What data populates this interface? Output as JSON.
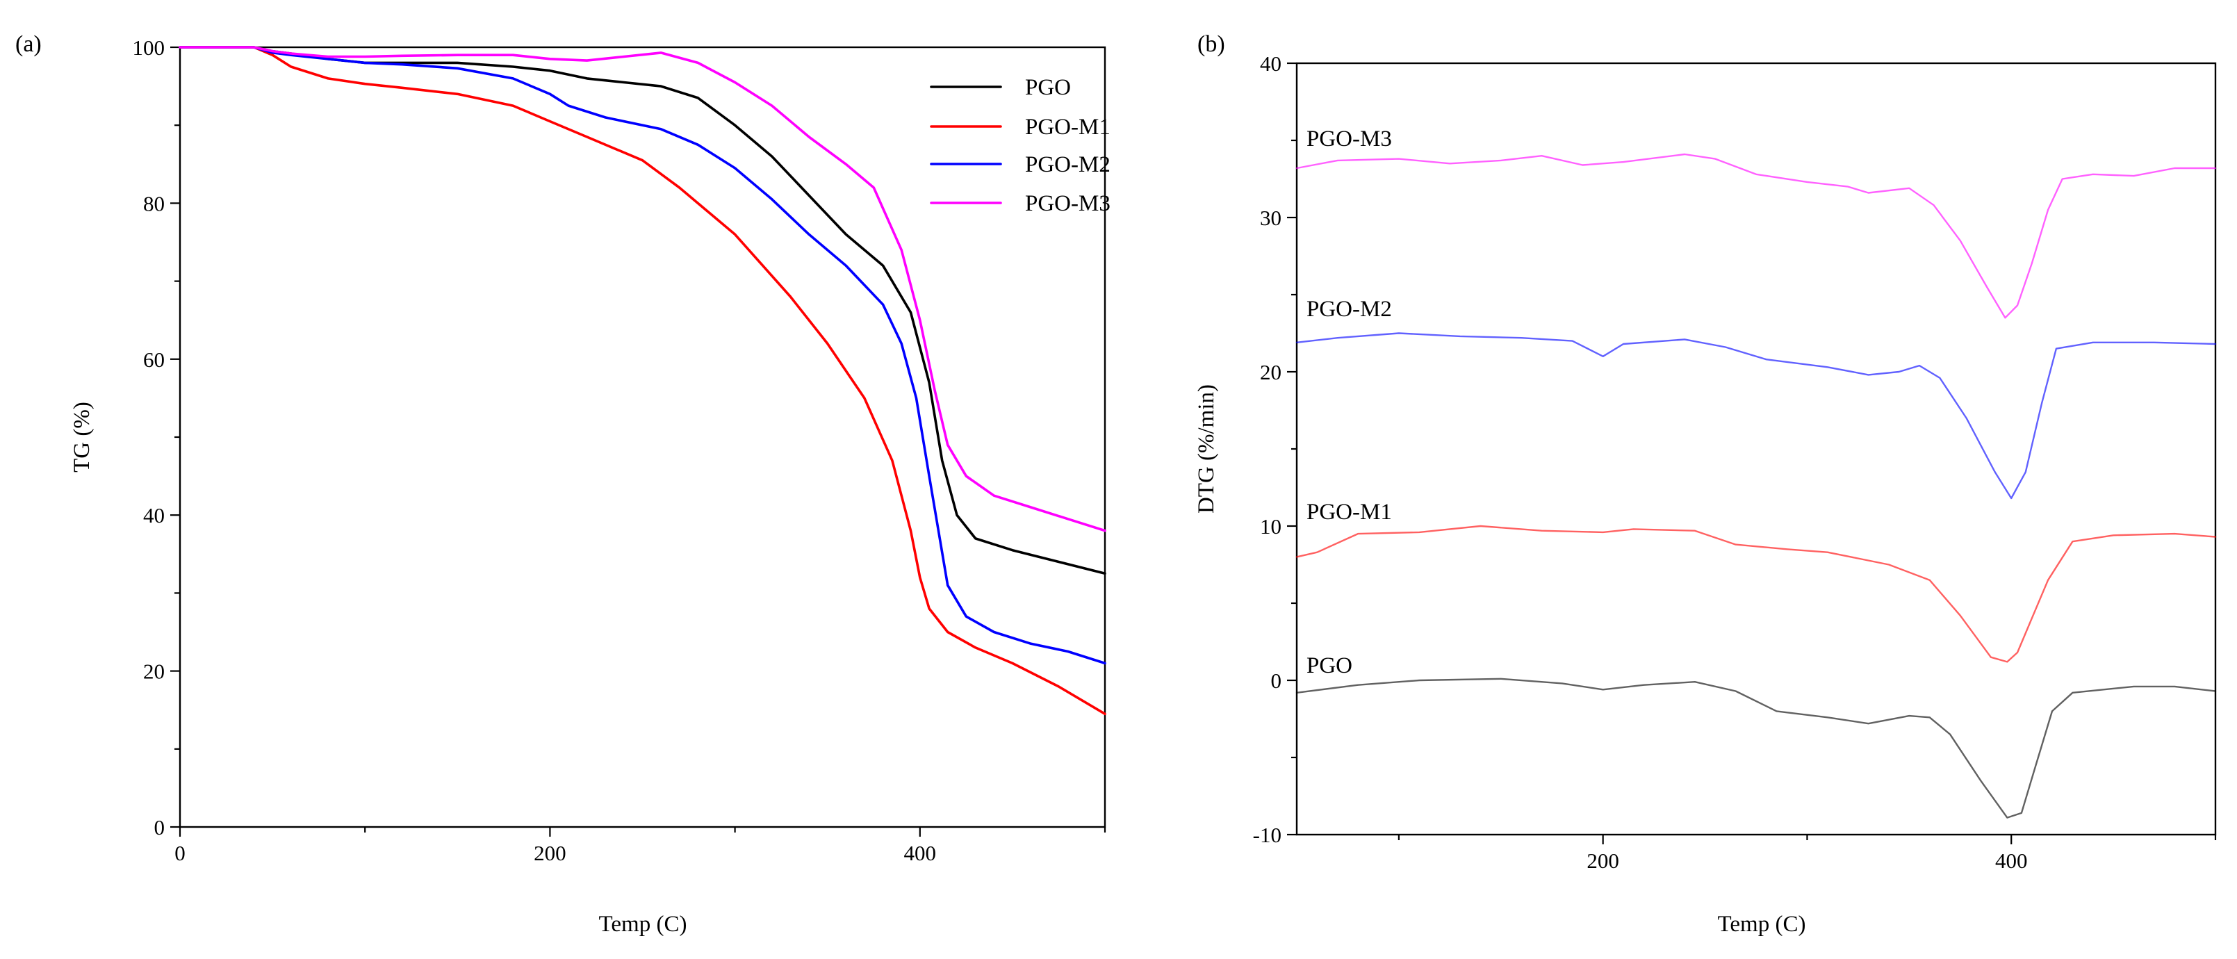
{
  "chart_data": [
    {
      "panel": "(a)",
      "type": "line",
      "title": "",
      "xlabel": "Temp (C)",
      "ylabel": "TG (%)",
      "xlim": [
        0,
        500
      ],
      "ylim": [
        0,
        100
      ],
      "xticks": [
        0,
        200,
        400
      ],
      "yticks": [
        0,
        20,
        40,
        60,
        80,
        100
      ],
      "legend": "top-right",
      "series": [
        {
          "name": "PGO",
          "color": "#000000",
          "points": [
            [
              0,
              100
            ],
            [
              40,
              100
            ],
            [
              50,
              99.5
            ],
            [
              60,
              99.2
            ],
            [
              80,
              98.5
            ],
            [
              100,
              98
            ],
            [
              120,
              98
            ],
            [
              150,
              98
            ],
            [
              180,
              97.5
            ],
            [
              200,
              97
            ],
            [
              220,
              96
            ],
            [
              240,
              95.5
            ],
            [
              260,
              95
            ],
            [
              280,
              93.5
            ],
            [
              300,
              90
            ],
            [
              320,
              86
            ],
            [
              340,
              81
            ],
            [
              360,
              76
            ],
            [
              380,
              72
            ],
            [
              395,
              66
            ],
            [
              405,
              57
            ],
            [
              412,
              47
            ],
            [
              420,
              40
            ],
            [
              430,
              37
            ],
            [
              450,
              35.5
            ],
            [
              475,
              34
            ],
            [
              500,
              32.5
            ]
          ]
        },
        {
          "name": "PGO-M1",
          "color": "#ff0000",
          "points": [
            [
              0,
              100
            ],
            [
              40,
              100
            ],
            [
              50,
              99
            ],
            [
              60,
              97.5
            ],
            [
              80,
              96
            ],
            [
              100,
              95.3
            ],
            [
              120,
              94.8
            ],
            [
              150,
              94
            ],
            [
              180,
              92.5
            ],
            [
              200,
              90.5
            ],
            [
              220,
              88.5
            ],
            [
              250,
              85.5
            ],
            [
              270,
              82
            ],
            [
              300,
              76
            ],
            [
              330,
              68
            ],
            [
              350,
              62
            ],
            [
              370,
              55
            ],
            [
              385,
              47
            ],
            [
              395,
              38
            ],
            [
              400,
              32
            ],
            [
              405,
              28
            ],
            [
              415,
              25
            ],
            [
              430,
              23
            ],
            [
              450,
              21
            ],
            [
              475,
              18
            ],
            [
              500,
              14.5
            ]
          ]
        },
        {
          "name": "PGO-M2",
          "color": "#0000ff",
          "points": [
            [
              0,
              100
            ],
            [
              40,
              100
            ],
            [
              50,
              99.3
            ],
            [
              60,
              99
            ],
            [
              80,
              98.5
            ],
            [
              100,
              98
            ],
            [
              120,
              97.8
            ],
            [
              150,
              97.3
            ],
            [
              180,
              96
            ],
            [
              200,
              94
            ],
            [
              210,
              92.5
            ],
            [
              230,
              91
            ],
            [
              260,
              89.5
            ],
            [
              280,
              87.5
            ],
            [
              300,
              84.5
            ],
            [
              320,
              80.5
            ],
            [
              340,
              76
            ],
            [
              360,
              72
            ],
            [
              380,
              67
            ],
            [
              390,
              62
            ],
            [
              398,
              55
            ],
            [
              405,
              45
            ],
            [
              410,
              38
            ],
            [
              415,
              31
            ],
            [
              425,
              27
            ],
            [
              440,
              25
            ],
            [
              460,
              23.5
            ],
            [
              480,
              22.5
            ],
            [
              500,
              21
            ]
          ]
        },
        {
          "name": "PGO-M3",
          "color": "#ff00ff",
          "points": [
            [
              0,
              100
            ],
            [
              40,
              100
            ],
            [
              50,
              99.5
            ],
            [
              60,
              99.2
            ],
            [
              80,
              98.8
            ],
            [
              100,
              98.8
            ],
            [
              120,
              98.9
            ],
            [
              150,
              99
            ],
            [
              180,
              99
            ],
            [
              200,
              98.5
            ],
            [
              220,
              98.3
            ],
            [
              240,
              98.8
            ],
            [
              260,
              99.3
            ],
            [
              280,
              98
            ],
            [
              300,
              95.5
            ],
            [
              320,
              92.5
            ],
            [
              340,
              88.5
            ],
            [
              360,
              85
            ],
            [
              375,
              82
            ],
            [
              390,
              74
            ],
            [
              400,
              65
            ],
            [
              408,
              56
            ],
            [
              415,
              49
            ],
            [
              425,
              45
            ],
            [
              440,
              42.5
            ],
            [
              460,
              41
            ],
            [
              480,
              39.5
            ],
            [
              500,
              38
            ]
          ]
        }
      ]
    },
    {
      "panel": "(b)",
      "type": "line",
      "title": "",
      "xlabel": "Temp (C)",
      "ylabel": "DTG (%/min)",
      "xlim": [
        50,
        500
      ],
      "ylim": [
        -10,
        40
      ],
      "xticks": [
        200,
        400
      ],
      "yticks": [
        -10,
        0,
        10,
        20,
        30,
        40
      ],
      "series": [
        {
          "name": "PGO",
          "color": "#000000",
          "points": [
            [
              50,
              -0.8
            ],
            [
              80,
              -0.3
            ],
            [
              110,
              0
            ],
            [
              150,
              0.1
            ],
            [
              180,
              -0.2
            ],
            [
              200,
              -0.6
            ],
            [
              220,
              -0.3
            ],
            [
              245,
              -0.1
            ],
            [
              265,
              -0.7
            ],
            [
              285,
              -2
            ],
            [
              310,
              -2.4
            ],
            [
              330,
              -2.8
            ],
            [
              350,
              -2.3
            ],
            [
              360,
              -2.4
            ],
            [
              370,
              -3.5
            ],
            [
              385,
              -6.5
            ],
            [
              398,
              -8.9
            ],
            [
              405,
              -8.6
            ],
            [
              412,
              -5.5
            ],
            [
              420,
              -2
            ],
            [
              430,
              -0.8
            ],
            [
              460,
              -0.4
            ],
            [
              480,
              -0.4
            ],
            [
              500,
              -0.7
            ]
          ]
        },
        {
          "name": "PGO-M1",
          "color": "#ff0000",
          "points": [
            [
              50,
              8
            ],
            [
              60,
              8.3
            ],
            [
              80,
              9.5
            ],
            [
              110,
              9.6
            ],
            [
              140,
              10
            ],
            [
              170,
              9.7
            ],
            [
              200,
              9.6
            ],
            [
              215,
              9.8
            ],
            [
              245,
              9.7
            ],
            [
              265,
              8.8
            ],
            [
              290,
              8.5
            ],
            [
              310,
              8.3
            ],
            [
              340,
              7.5
            ],
            [
              360,
              6.5
            ],
            [
              375,
              4.2
            ],
            [
              390,
              1.5
            ],
            [
              398,
              1.2
            ],
            [
              403,
              1.8
            ],
            [
              410,
              4
            ],
            [
              418,
              6.5
            ],
            [
              430,
              9
            ],
            [
              450,
              9.4
            ],
            [
              480,
              9.5
            ],
            [
              500,
              9.3
            ]
          ]
        },
        {
          "name": "PGO-M2",
          "color": "#0000ff",
          "points": [
            [
              50,
              21.9
            ],
            [
              70,
              22.2
            ],
            [
              100,
              22.5
            ],
            [
              130,
              22.3
            ],
            [
              160,
              22.2
            ],
            [
              185,
              22.0
            ],
            [
              200,
              21.0
            ],
            [
              210,
              21.8
            ],
            [
              240,
              22.1
            ],
            [
              260,
              21.6
            ],
            [
              280,
              20.8
            ],
            [
              310,
              20.3
            ],
            [
              330,
              19.8
            ],
            [
              345,
              20
            ],
            [
              355,
              20.4
            ],
            [
              365,
              19.6
            ],
            [
              378,
              17
            ],
            [
              392,
              13.5
            ],
            [
              400,
              11.8
            ],
            [
              407,
              13.5
            ],
            [
              415,
              18
            ],
            [
              422,
              21.5
            ],
            [
              440,
              21.9
            ],
            [
              470,
              21.9
            ],
            [
              500,
              21.8
            ]
          ]
        },
        {
          "name": "PGO-M3",
          "color": "#ff00ff",
          "points": [
            [
              50,
              33.2
            ],
            [
              70,
              33.7
            ],
            [
              100,
              33.8
            ],
            [
              125,
              33.5
            ],
            [
              150,
              33.7
            ],
            [
              170,
              34
            ],
            [
              190,
              33.4
            ],
            [
              210,
              33.6
            ],
            [
              240,
              34.1
            ],
            [
              255,
              33.8
            ],
            [
              275,
              32.8
            ],
            [
              300,
              32.3
            ],
            [
              320,
              32
            ],
            [
              330,
              31.6
            ],
            [
              350,
              31.9
            ],
            [
              362,
              30.8
            ],
            [
              375,
              28.5
            ],
            [
              388,
              25.5
            ],
            [
              397,
              23.5
            ],
            [
              403,
              24.3
            ],
            [
              410,
              27
            ],
            [
              418,
              30.5
            ],
            [
              425,
              32.5
            ],
            [
              440,
              32.8
            ],
            [
              460,
              32.7
            ],
            [
              480,
              33.2
            ],
            [
              500,
              33.2
            ]
          ]
        }
      ]
    }
  ]
}
